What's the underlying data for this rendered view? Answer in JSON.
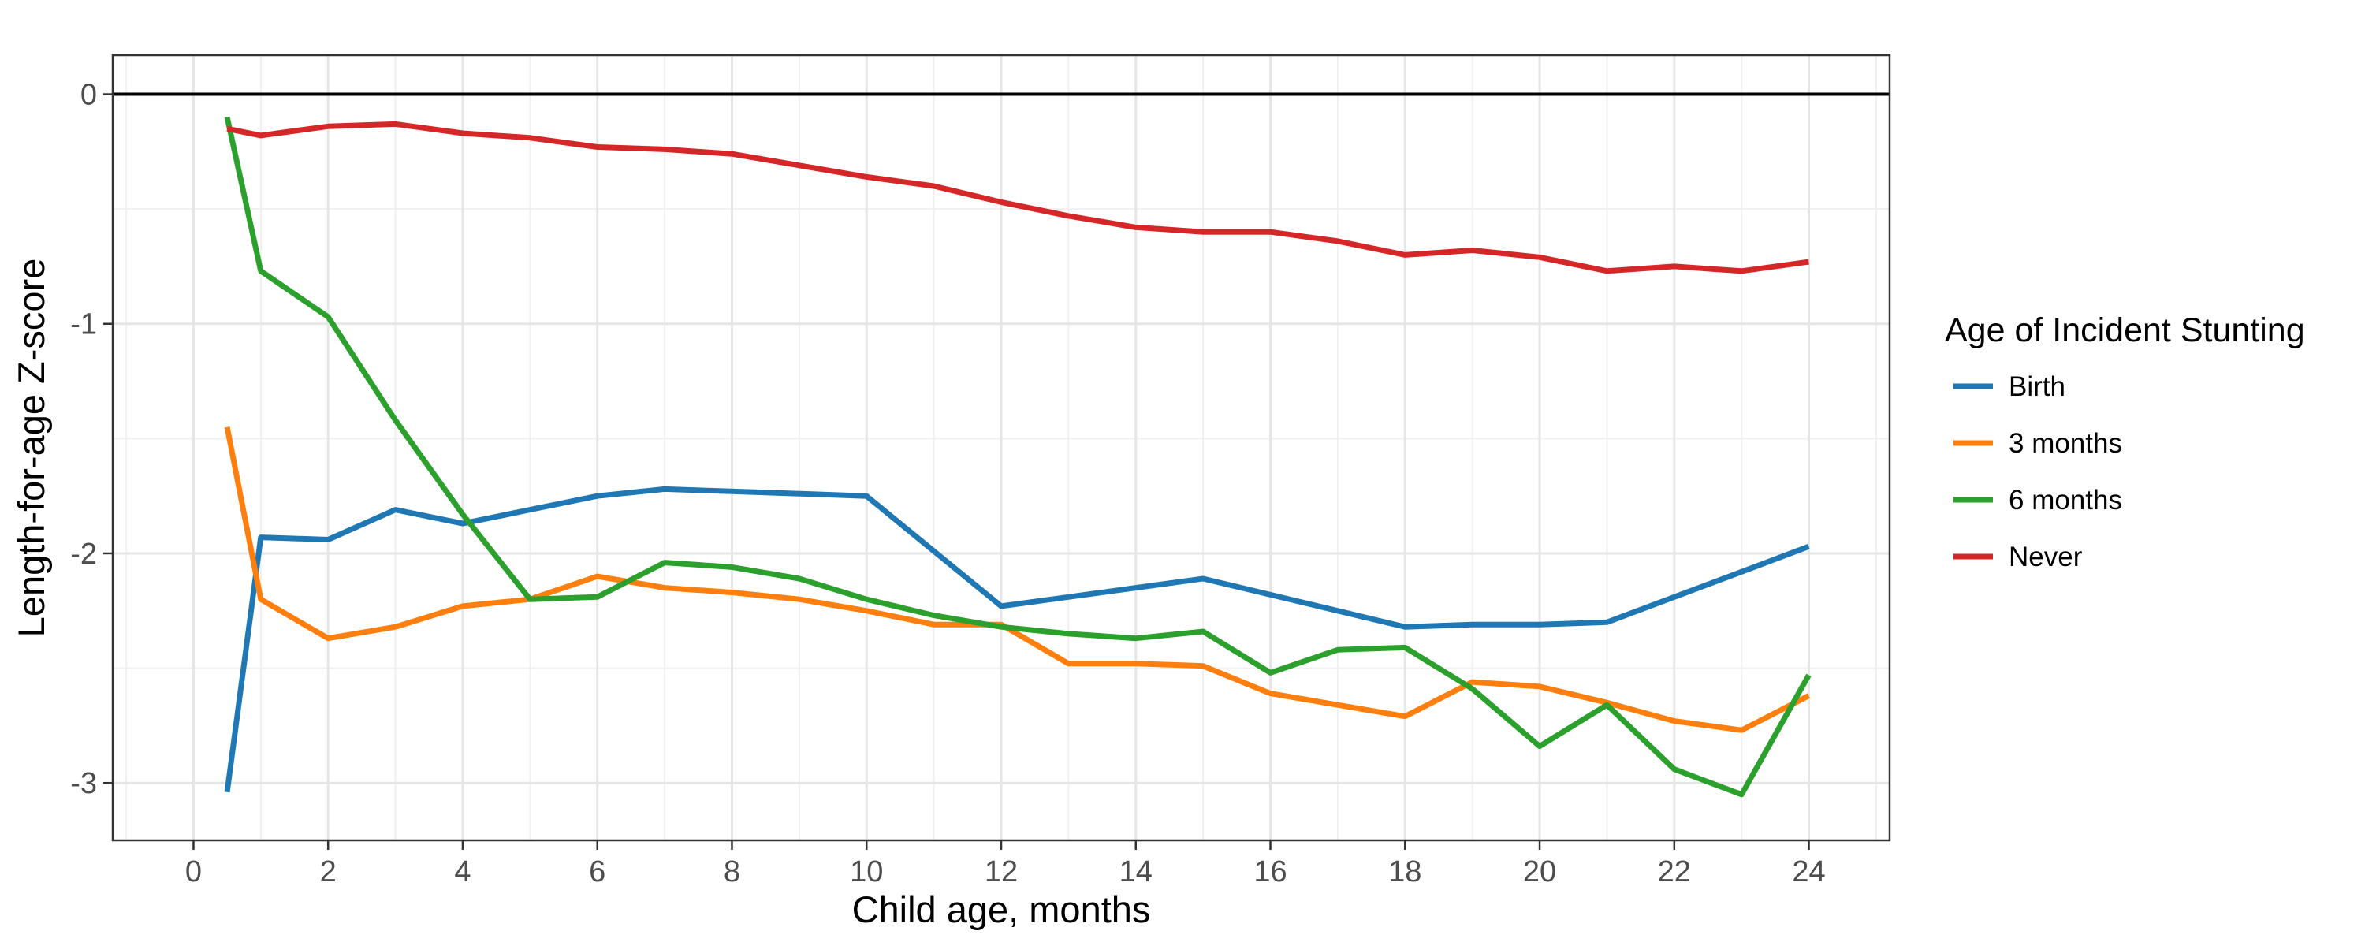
{
  "chart_data": {
    "type": "line",
    "xlabel": "Child age, months",
    "ylabel": "Length-for-age Z-score",
    "xlim": [
      -1.2,
      25.2
    ],
    "ylim": [
      -3.25,
      0.17
    ],
    "x_ticks": [
      0,
      2,
      4,
      6,
      8,
      10,
      12,
      14,
      16,
      18,
      20,
      22,
      24
    ],
    "x_tick_labels": [
      "0",
      "2",
      "4",
      "6",
      "8",
      "10",
      "12",
      "14",
      "16",
      "18",
      "20",
      "22",
      "24"
    ],
    "y_ticks": [
      0,
      -1,
      -2,
      -3
    ],
    "y_tick_labels": [
      "0",
      "-1",
      "-2",
      "-3"
    ],
    "reference_line_y": 0,
    "grid": true,
    "legend": {
      "title": "Age of Incident Stunting",
      "position": "right"
    },
    "x": [
      0.5,
      1,
      2,
      3,
      4,
      5,
      6,
      7,
      8,
      9,
      10,
      11,
      12,
      13,
      14,
      15,
      16,
      17,
      18,
      19,
      20,
      21,
      22,
      23,
      24
    ],
    "series": [
      {
        "name": "Birth",
        "color": "#1F77B4",
        "values": [
          -3.04,
          -1.93,
          -1.94,
          -1.81,
          -1.87,
          -1.81,
          -1.75,
          -1.72,
          -1.73,
          -1.74,
          -1.75,
          -1.99,
          -2.23,
          -2.19,
          -2.15,
          -2.11,
          -2.18,
          -2.25,
          -2.32,
          -2.31,
          -2.31,
          -2.3,
          -2.19,
          -2.08,
          -1.97
        ]
      },
      {
        "name": "3 months",
        "color": "#FF7F0E",
        "values": [
          -1.45,
          -2.2,
          -2.37,
          -2.32,
          -2.23,
          -2.2,
          -2.1,
          -2.15,
          -2.17,
          -2.2,
          -2.25,
          -2.31,
          -2.31,
          -2.48,
          -2.48,
          -2.49,
          -2.61,
          -2.66,
          -2.71,
          -2.56,
          -2.58,
          -2.65,
          -2.73,
          -2.77,
          -2.62
        ]
      },
      {
        "name": "6 months",
        "color": "#2CA02C",
        "values": [
          -0.1,
          -0.77,
          -0.97,
          -1.42,
          -1.83,
          -2.2,
          -2.19,
          -2.04,
          -2.06,
          -2.11,
          -2.2,
          -2.27,
          -2.32,
          -2.35,
          -2.37,
          -2.34,
          -2.52,
          -2.42,
          -2.41,
          -2.59,
          -2.84,
          -2.66,
          -2.94,
          -3.05,
          -2.53
        ]
      },
      {
        "name": "Never",
        "color": "#D62728",
        "values": [
          -0.15,
          -0.18,
          -0.14,
          -0.13,
          -0.17,
          -0.19,
          -0.23,
          -0.24,
          -0.26,
          -0.31,
          -0.36,
          -0.4,
          -0.47,
          -0.53,
          -0.58,
          -0.6,
          -0.6,
          -0.64,
          -0.7,
          -0.68,
          -0.71,
          -0.77,
          -0.75,
          -0.77,
          -0.73
        ]
      }
    ]
  }
}
